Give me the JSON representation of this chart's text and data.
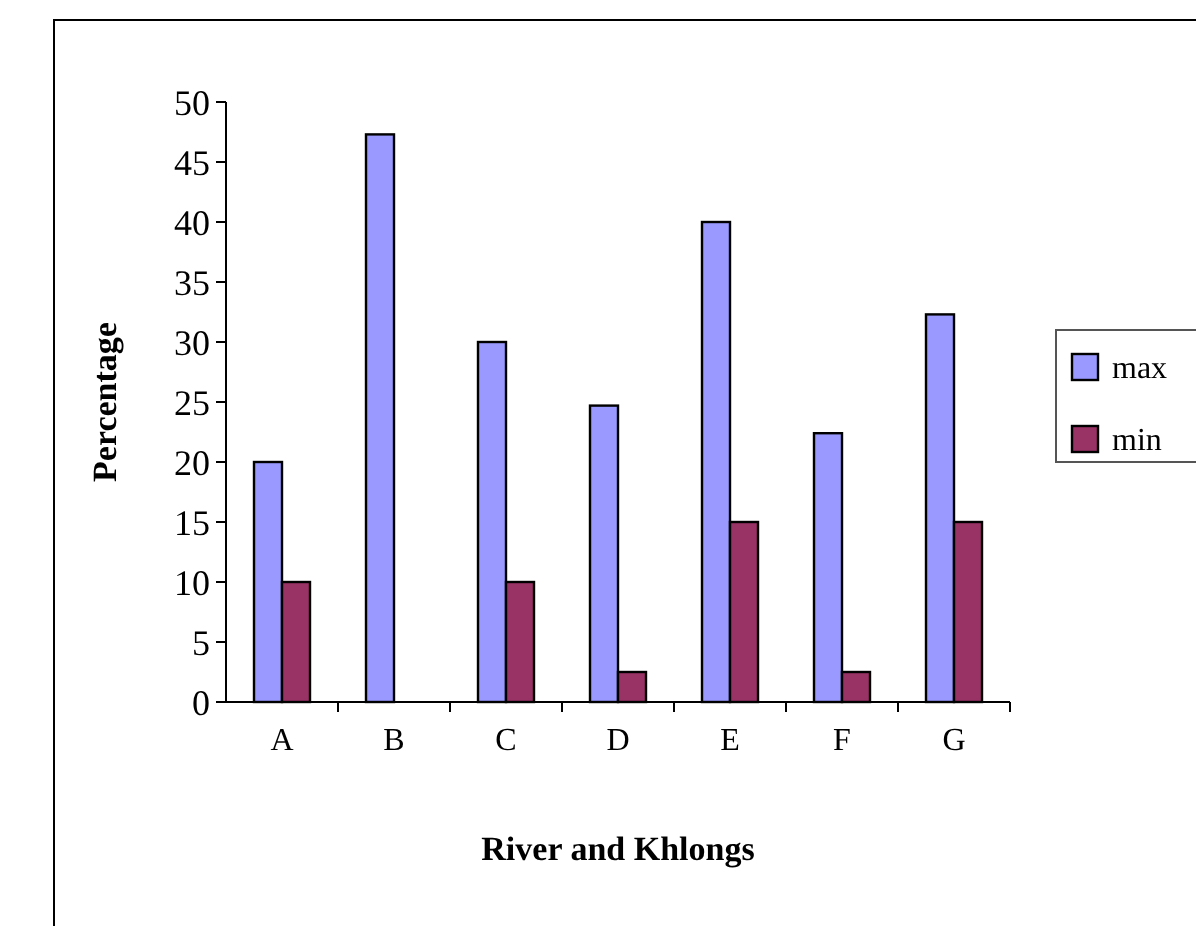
{
  "chart_data": {
    "type": "bar",
    "xlabel": "River and Khlongs",
    "ylabel": "Percentage",
    "categories": [
      "A",
      "B",
      "C",
      "D",
      "E",
      "F",
      "G"
    ],
    "series": [
      {
        "name": "max",
        "color": "#9999ff",
        "values": [
          20,
          47.3,
          30,
          24.7,
          40,
          22.4,
          32.3
        ]
      },
      {
        "name": "min",
        "color": "#993366",
        "values": [
          10,
          null,
          10,
          2.5,
          15,
          2.5,
          15
        ]
      }
    ],
    "ylim": [
      0,
      50
    ],
    "yticks": [
      0,
      5,
      10,
      15,
      20,
      25,
      30,
      35,
      40,
      45,
      50
    ],
    "legend": "right"
  }
}
